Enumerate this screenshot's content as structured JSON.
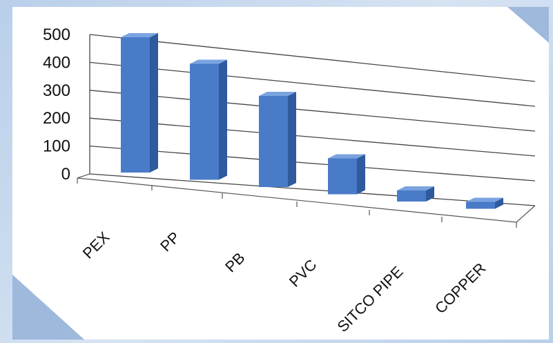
{
  "chart_data": {
    "type": "bar",
    "categories": [
      "PEX",
      "PP",
      "PB",
      "PVC",
      "SITCO PIPE",
      "COPPER"
    ],
    "values": [
      490,
      420,
      330,
      130,
      40,
      25
    ],
    "title": "",
    "xlabel": "",
    "ylabel": "",
    "ylim": [
      0,
      500
    ],
    "yticks": [
      "0",
      "100",
      "200",
      "300",
      "400",
      "500"
    ],
    "grid": true,
    "three_d": true,
    "colors": {
      "bar_front": "#4a7bc8",
      "bar_side": "#2f5a9e",
      "bar_top": "#7aa3e0",
      "frame": "#b9cfe9",
      "background": "#ffffff"
    }
  }
}
